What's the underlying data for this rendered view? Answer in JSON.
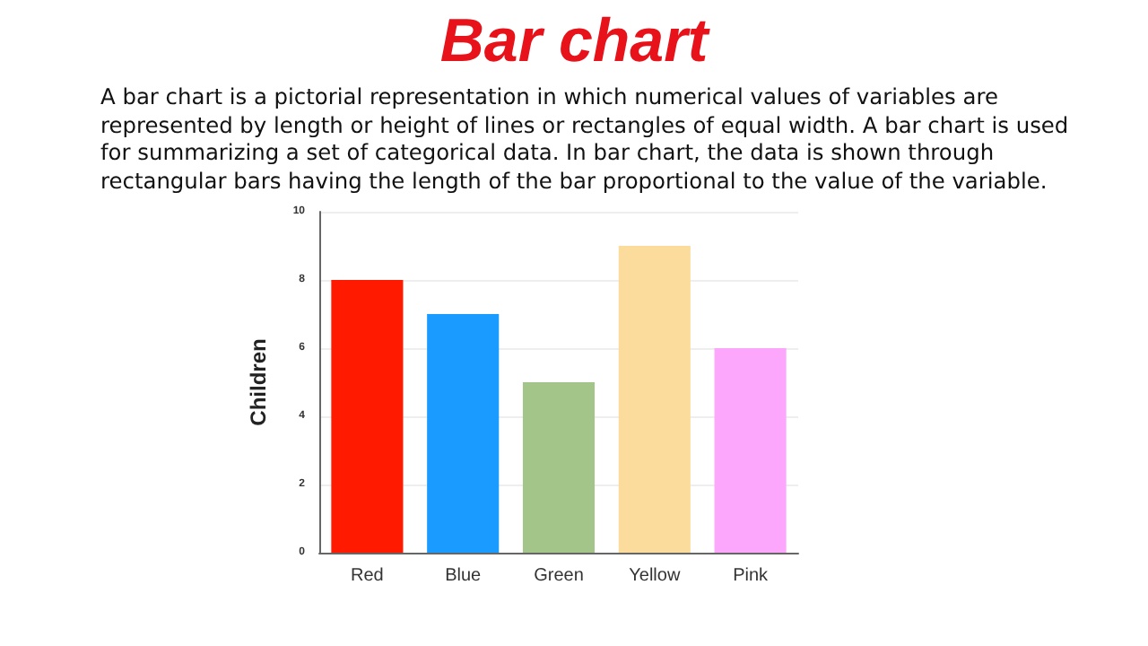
{
  "chart_data": {
    "type": "bar",
    "title": "Bar chart",
    "subtitle": "A bar chart is a pictorial representation in which numerical values of variables are represented by length or height of lines or rectangles of equal width. A bar chart is used for summarizing a set of categorical data. In bar chart, the data is shown through rectangular bars having the length of the bar proportional to the value of the variable.",
    "ylabel": "Children",
    "categories": [
      "Red",
      "Blue",
      "Green",
      "Yellow",
      "Pink"
    ],
    "values": [
      8,
      7,
      5,
      9,
      6
    ],
    "colors": [
      "#ff1a00",
      "#1a9bff",
      "#a3c58a",
      "#fcdc9c",
      "#fca6fc"
    ],
    "ylim": [
      0,
      10
    ],
    "yticks": [
      0,
      2,
      4,
      6,
      8,
      10
    ],
    "grid": "y"
  }
}
